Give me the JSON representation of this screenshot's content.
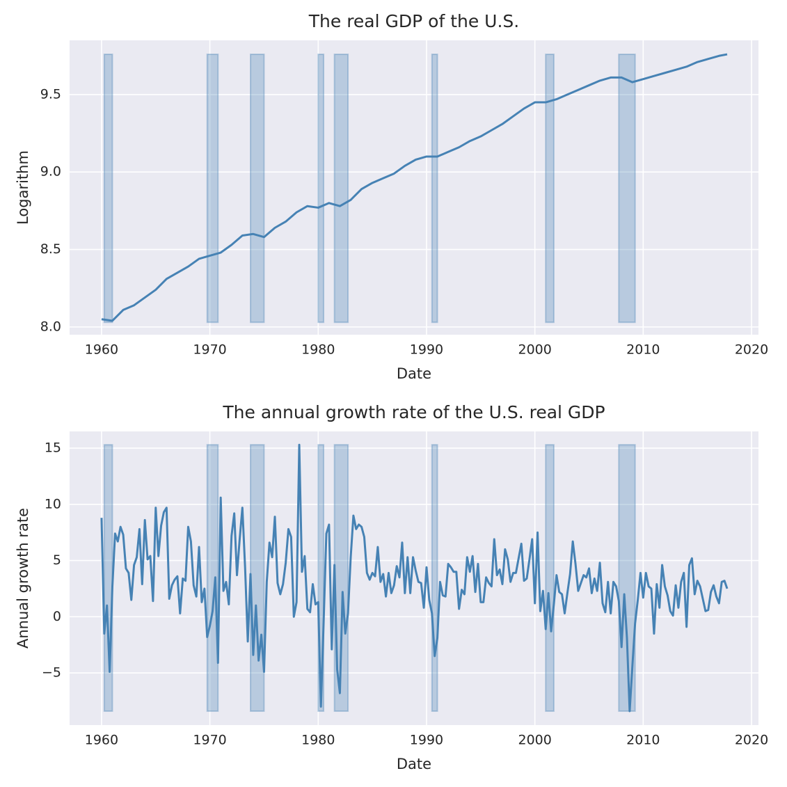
{
  "chart_data": [
    {
      "type": "line",
      "title": "The real GDP of the U.S.",
      "xlabel": "Date",
      "ylabel": "Logarithm",
      "color": "#4682b4",
      "grid": true,
      "x": [
        1960,
        1961,
        1962,
        1963,
        1964,
        1965,
        1966,
        1967,
        1968,
        1969,
        1970,
        1971,
        1972,
        1973,
        1974,
        1975,
        1976,
        1977,
        1978,
        1979,
        1980,
        1981,
        1982,
        1983,
        1984,
        1985,
        1986,
        1987,
        1988,
        1989,
        1990,
        1991,
        1992,
        1993,
        1994,
        1995,
        1996,
        1997,
        1998,
        1999,
        2000,
        2001,
        2002,
        2003,
        2004,
        2005,
        2006,
        2007,
        2008,
        2009,
        2010,
        2011,
        2012,
        2013,
        2014,
        2015,
        2016,
        2017,
        2017.75
      ],
      "values": [
        8.05,
        8.04,
        8.11,
        8.14,
        8.19,
        8.24,
        8.31,
        8.35,
        8.39,
        8.44,
        8.46,
        8.48,
        8.53,
        8.59,
        8.6,
        8.58,
        8.64,
        8.68,
        8.74,
        8.78,
        8.77,
        8.8,
        8.78,
        8.82,
        8.89,
        8.93,
        8.96,
        8.99,
        9.04,
        9.08,
        9.1,
        9.1,
        9.13,
        9.16,
        9.2,
        9.23,
        9.27,
        9.31,
        9.36,
        9.41,
        9.45,
        9.45,
        9.47,
        9.5,
        9.53,
        9.56,
        9.59,
        9.61,
        9.61,
        9.58,
        9.6,
        9.62,
        9.64,
        9.66,
        9.68,
        9.71,
        9.73,
        9.75,
        9.76
      ],
      "bands": {
        "ylim": [
          8.03,
          9.76
        ],
        "ranges": [
          [
            1960.25,
            1961
          ],
          [
            1969.75,
            1970.75
          ],
          [
            1973.75,
            1975
          ],
          [
            1980,
            1980.5
          ],
          [
            1981.5,
            1982.75
          ],
          [
            1990.5,
            1991
          ],
          [
            2001,
            2001.75
          ],
          [
            2007.75,
            2009.25
          ]
        ]
      },
      "xlim": [
        1957.05,
        2020.64
      ],
      "xticks": [
        1960,
        1970,
        1980,
        1990,
        2000,
        2010,
        2020
      ],
      "ylim": [
        7.95,
        9.85
      ],
      "yticks": [
        {
          "value": 8,
          "label": "8.0"
        },
        8.5,
        {
          "value": 9,
          "label": "9.0"
        },
        9.5
      ]
    },
    {
      "type": "line",
      "title": "The annual growth rate of the U.S. real GDP",
      "xlabel": "Date",
      "ylabel": "Annual growth rate",
      "color": "#4682b4",
      "grid": true,
      "x": [
        1960,
        1960.25,
        1960.5,
        1960.75,
        1961,
        1961.25,
        1961.5,
        1961.75,
        1962,
        1962.25,
        1962.5,
        1962.75,
        1963,
        1963.25,
        1963.5,
        1963.75,
        1964,
        1964.25,
        1964.5,
        1964.75,
        1965,
        1965.25,
        1965.5,
        1965.75,
        1966,
        1966.25,
        1966.5,
        1966.75,
        1967,
        1967.25,
        1967.5,
        1967.75,
        1968,
        1968.25,
        1968.5,
        1968.75,
        1969,
        1969.25,
        1969.5,
        1969.75,
        1970,
        1970.25,
        1970.5,
        1970.75,
        1971,
        1971.25,
        1971.5,
        1971.75,
        1972,
        1972.25,
        1972.5,
        1972.75,
        1973,
        1973.25,
        1973.5,
        1973.75,
        1974,
        1974.25,
        1974.5,
        1974.75,
        1975,
        1975.25,
        1975.5,
        1975.75,
        1976,
        1976.25,
        1976.5,
        1976.75,
        1977,
        1977.25,
        1977.5,
        1977.75,
        1978,
        1978.25,
        1978.5,
        1978.75,
        1979,
        1979.25,
        1979.5,
        1979.75,
        1980,
        1980.25,
        1980.5,
        1980.75,
        1981,
        1981.25,
        1981.5,
        1981.75,
        1982,
        1982.25,
        1982.5,
        1982.75,
        1983,
        1983.25,
        1983.5,
        1983.75,
        1984,
        1984.25,
        1984.5,
        1984.75,
        1985,
        1985.25,
        1985.5,
        1985.75,
        1986,
        1986.25,
        1986.5,
        1986.75,
        1987,
        1987.25,
        1987.5,
        1987.75,
        1988,
        1988.25,
        1988.5,
        1988.75,
        1989,
        1989.25,
        1989.5,
        1989.75,
        1990,
        1990.25,
        1990.5,
        1990.75,
        1991,
        1991.25,
        1991.5,
        1991.75,
        1992,
        1992.25,
        1992.5,
        1992.75,
        1993,
        1993.25,
        1993.5,
        1993.75,
        1994,
        1994.25,
        1994.5,
        1994.75,
        1995,
        1995.25,
        1995.5,
        1995.75,
        1996,
        1996.25,
        1996.5,
        1996.75,
        1997,
        1997.25,
        1997.5,
        1997.75,
        1998,
        1998.25,
        1998.5,
        1998.75,
        1999,
        1999.25,
        1999.5,
        1999.75,
        2000,
        2000.25,
        2000.5,
        2000.75,
        2001,
        2001.25,
        2001.5,
        2001.75,
        2002,
        2002.25,
        2002.5,
        2002.75,
        2003,
        2003.25,
        2003.5,
        2003.75,
        2004,
        2004.25,
        2004.5,
        2004.75,
        2005,
        2005.25,
        2005.5,
        2005.75,
        2006,
        2006.25,
        2006.5,
        2006.75,
        2007,
        2007.25,
        2007.5,
        2007.75,
        2008,
        2008.25,
        2008.5,
        2008.75,
        2009,
        2009.25,
        2009.5,
        2009.75,
        2010,
        2010.25,
        2010.5,
        2010.75,
        2011,
        2011.25,
        2011.5,
        2011.75,
        2012,
        2012.25,
        2012.5,
        2012.75,
        2013,
        2013.25,
        2013.5,
        2013.75,
        2014,
        2014.25,
        2014.5,
        2014.75,
        2015,
        2015.25,
        2015.5,
        2015.75,
        2016,
        2016.25,
        2016.5,
        2016.75,
        2017,
        2017.25,
        2017.5,
        2017.75
      ],
      "values": [
        8.8,
        -1.5,
        1.0,
        -4.9,
        2.7,
        7.4,
        6.7,
        8.0,
        7.3,
        4.3,
        3.9,
        1.5,
        4.6,
        5.3,
        7.8,
        2.9,
        8.6,
        5.1,
        5.4,
        1.4,
        9.7,
        5.4,
        8.1,
        9.3,
        9.7,
        1.6,
        2.8,
        3.3,
        3.6,
        0.3,
        3.4,
        3.2,
        8.0,
        6.7,
        2.8,
        1.8,
        6.2,
        1.3,
        2.5,
        -1.8,
        -0.8,
        0.5,
        3.5,
        -4.1,
        10.6,
        2.3,
        3.1,
        1.1,
        7.2,
        9.2,
        3.7,
        6.9,
        9.7,
        4.4,
        -2.2,
        3.8,
        -3.4,
        1.0,
        -3.9,
        -1.6,
        -4.9,
        3.1,
        6.6,
        5.3,
        8.9,
        3.0,
        2.0,
        2.9,
        4.8,
        7.8,
        7.1,
        0.0,
        1.3,
        15.3,
        4.0,
        5.4,
        0.7,
        0.4,
        2.9,
        1.1,
        1.3,
        -8.0,
        -0.5,
        7.4,
        8.2,
        -2.9,
        4.6,
        -4.7,
        -6.8,
        2.2,
        -1.5,
        0.3,
        5.3,
        9.0,
        7.8,
        8.2,
        8.0,
        7.1,
        3.9,
        3.3,
        3.9,
        3.6,
        6.2,
        3.1,
        3.8,
        1.8,
        3.9,
        2.1,
        2.8,
        4.5,
        3.5,
        6.6,
        2.1,
        5.3,
        2.1,
        5.3,
        4.1,
        3.1,
        3.0,
        0.8,
        4.4,
        1.5,
        0.3,
        -3.5,
        -1.9,
        3.1,
        1.9,
        1.8,
        4.7,
        4.4,
        4.0,
        4.0,
        0.7,
        2.4,
        2.0,
        5.3,
        4.0,
        5.4,
        2.2,
        4.7,
        1.3,
        1.3,
        3.5,
        3.0,
        2.7,
        6.9,
        3.7,
        4.2,
        2.9,
        6.0,
        5.1,
        3.1,
        3.9,
        3.9,
        5.2,
        6.5,
        3.2,
        3.4,
        5.1,
        6.9,
        1.2,
        7.5,
        0.5,
        2.3,
        -1.1,
        2.1,
        -1.3,
        1.1,
        3.7,
        2.2,
        2.0,
        0.3,
        2.1,
        3.8,
        6.7,
        4.7,
        2.3,
        3.0,
        3.7,
        3.5,
        4.3,
        2.1,
        3.4,
        2.3,
        4.8,
        1.2,
        0.4,
        3.1,
        0.3,
        3.1,
        2.7,
        1.4,
        -2.7,
        2.0,
        -1.9,
        -8.4,
        -4.4,
        -0.6,
        1.5,
        3.9,
        1.7,
        3.9,
        2.7,
        2.5,
        -1.5,
        2.9,
        0.8,
        4.6,
        2.7,
        1.9,
        0.5,
        0.1,
        2.8,
        0.8,
        3.1,
        3.9,
        -0.9,
        4.6,
        5.2,
        2.0,
        3.2,
        2.7,
        1.6,
        0.5,
        0.6,
        2.2,
        2.8,
        1.8,
        1.2,
        3.1,
        3.2,
        2.5
      ],
      "bands": {
        "ylim": [
          -8.4,
          15.3
        ],
        "ranges": [
          [
            1960.25,
            1961
          ],
          [
            1969.75,
            1970.75
          ],
          [
            1973.75,
            1975
          ],
          [
            1980,
            1980.5
          ],
          [
            1981.5,
            1982.75
          ],
          [
            1990.5,
            1991
          ],
          [
            2001,
            2001.75
          ],
          [
            2007.75,
            2009.25
          ]
        ]
      },
      "xlim": [
        1957.05,
        2020.64
      ],
      "xticks": [
        1960,
        1970,
        1980,
        1990,
        2000,
        2010,
        2020
      ],
      "ylim": [
        -9.64,
        16.49
      ],
      "yticks": [
        {
          "value": -5,
          "label": "−5"
        },
        0,
        5,
        10,
        15
      ]
    }
  ]
}
